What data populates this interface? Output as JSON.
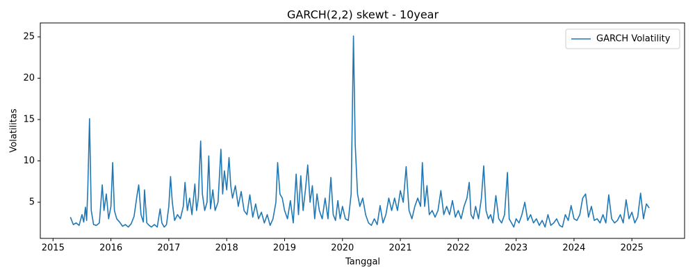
{
  "chart_data": {
    "type": "line",
    "title": "GARCH(2,2) skewt - 10year",
    "x_label": "Tanggal",
    "y_label": "Volatilitas",
    "x": [
      2015.3,
      2015.35,
      2015.4,
      2015.45,
      2015.5,
      2015.53,
      2015.56,
      2015.58,
      2015.6,
      2015.63,
      2015.66,
      2015.7,
      2015.75,
      2015.8,
      2015.85,
      2015.88,
      2015.92,
      2015.96,
      2016.0,
      2016.03,
      2016.06,
      2016.1,
      2016.15,
      2016.2,
      2016.25,
      2016.3,
      2016.35,
      2016.4,
      2016.45,
      2016.48,
      2016.52,
      2016.56,
      2016.58,
      2016.62,
      2016.66,
      2016.7,
      2016.75,
      2016.8,
      2016.85,
      2016.88,
      2016.92,
      2016.96,
      2017.0,
      2017.03,
      2017.06,
      2017.1,
      2017.15,
      2017.2,
      2017.25,
      2017.28,
      2017.32,
      2017.36,
      2017.4,
      2017.45,
      2017.48,
      2017.51,
      2017.55,
      2017.58,
      2017.62,
      2017.66,
      2017.69,
      2017.72,
      2017.76,
      2017.8,
      2017.85,
      2017.9,
      2017.93,
      2017.96,
      2018.0,
      2018.04,
      2018.07,
      2018.1,
      2018.15,
      2018.2,
      2018.25,
      2018.3,
      2018.35,
      2018.4,
      2018.45,
      2018.5,
      2018.55,
      2018.6,
      2018.65,
      2018.7,
      2018.75,
      2018.8,
      2018.85,
      2018.88,
      2018.92,
      2018.96,
      2019.0,
      2019.05,
      2019.1,
      2019.15,
      2019.2,
      2019.24,
      2019.28,
      2019.32,
      2019.36,
      2019.4,
      2019.44,
      2019.48,
      2019.52,
      2019.56,
      2019.6,
      2019.65,
      2019.7,
      2019.75,
      2019.8,
      2019.84,
      2019.88,
      2019.92,
      2019.96,
      2020.0,
      2020.05,
      2020.1,
      2020.15,
      2020.19,
      2020.22,
      2020.26,
      2020.3,
      2020.35,
      2020.4,
      2020.45,
      2020.5,
      2020.55,
      2020.6,
      2020.65,
      2020.7,
      2020.75,
      2020.8,
      2020.85,
      2020.9,
      2020.95,
      2021.0,
      2021.05,
      2021.1,
      2021.15,
      2021.2,
      2021.25,
      2021.3,
      2021.35,
      2021.38,
      2021.42,
      2021.46,
      2021.5,
      2021.55,
      2021.6,
      2021.65,
      2021.7,
      2021.75,
      2021.8,
      2021.85,
      2021.9,
      2021.95,
      2022.0,
      2022.05,
      2022.1,
      2022.15,
      2022.19,
      2022.22,
      2022.26,
      2022.3,
      2022.35,
      2022.4,
      2022.44,
      2022.48,
      2022.52,
      2022.56,
      2022.6,
      2022.65,
      2022.7,
      2022.75,
      2022.8,
      2022.85,
      2022.88,
      2022.92,
      2022.96,
      2023.0,
      2023.05,
      2023.1,
      2023.15,
      2023.2,
      2023.25,
      2023.3,
      2023.35,
      2023.4,
      2023.45,
      2023.5,
      2023.55,
      2023.6,
      2023.65,
      2023.7,
      2023.75,
      2023.8,
      2023.85,
      2023.9,
      2023.95,
      2024.0,
      2024.05,
      2024.1,
      2024.15,
      2024.2,
      2024.25,
      2024.3,
      2024.35,
      2024.4,
      2024.45,
      2024.5,
      2024.55,
      2024.6,
      2024.65,
      2024.7,
      2024.75,
      2024.8,
      2024.85,
      2024.9,
      2024.95,
      2025.0,
      2025.05,
      2025.1,
      2025.15,
      2025.2,
      2025.25,
      2025.3
    ],
    "series": [
      {
        "name": "GARCH Volatility",
        "color": "#1f77b4",
        "values": [
          3.2,
          2.3,
          2.5,
          2.2,
          3.5,
          2.6,
          4.4,
          2.8,
          6.5,
          15.1,
          4.0,
          2.3,
          2.2,
          2.5,
          7.1,
          4.0,
          6.0,
          3.0,
          4.5,
          9.8,
          4.0,
          3.0,
          2.6,
          2.1,
          2.3,
          2.0,
          2.4,
          3.3,
          5.8,
          7.1,
          3.5,
          2.6,
          6.5,
          2.5,
          2.2,
          2.0,
          2.3,
          2.0,
          4.2,
          2.5,
          2.0,
          2.3,
          4.5,
          8.1,
          5.0,
          2.8,
          3.5,
          3.0,
          4.5,
          7.4,
          4.0,
          5.5,
          3.5,
          7.2,
          4.0,
          5.5,
          12.4,
          6.0,
          4.0,
          5.0,
          10.6,
          4.2,
          6.5,
          4.0,
          5.0,
          11.4,
          6.0,
          8.8,
          6.5,
          10.4,
          7.0,
          5.5,
          7.0,
          4.5,
          6.3,
          4.0,
          3.5,
          5.9,
          3.2,
          4.8,
          3.0,
          3.8,
          2.5,
          3.5,
          2.2,
          3.0,
          5.0,
          9.8,
          6.0,
          5.5,
          4.0,
          3.0,
          5.2,
          2.5,
          8.4,
          3.5,
          8.2,
          4.0,
          6.5,
          9.5,
          5.0,
          7.0,
          3.0,
          6.0,
          4.0,
          3.0,
          5.5,
          3.0,
          8.0,
          3.5,
          2.8,
          5.2,
          3.0,
          4.5,
          3.0,
          2.8,
          6.0,
          25.1,
          12.0,
          6.0,
          4.5,
          5.5,
          3.5,
          2.5,
          2.2,
          3.0,
          2.3,
          4.6,
          2.5,
          3.5,
          5.5,
          4.0,
          5.5,
          4.0,
          6.4,
          5.0,
          9.3,
          4.0,
          3.0,
          4.5,
          5.5,
          4.5,
          9.8,
          4.5,
          7.0,
          3.5,
          4.0,
          3.2,
          4.0,
          6.4,
          3.5,
          4.5,
          3.5,
          5.2,
          3.2,
          4.0,
          3.0,
          4.5,
          5.5,
          7.4,
          3.5,
          3.0,
          4.5,
          3.0,
          5.5,
          9.4,
          4.0,
          3.0,
          3.5,
          2.5,
          5.8,
          3.0,
          2.5,
          3.5,
          8.6,
          3.0,
          2.5,
          2.0,
          3.0,
          2.5,
          3.5,
          5.0,
          2.8,
          3.5,
          2.5,
          3.0,
          2.2,
          2.8,
          2.0,
          3.5,
          2.2,
          2.5,
          3.0,
          2.2,
          2.0,
          3.5,
          2.8,
          4.6,
          3.0,
          2.8,
          3.5,
          5.5,
          6.0,
          3.2,
          4.5,
          2.8,
          3.0,
          2.5,
          3.5,
          2.5,
          5.9,
          3.0,
          2.5,
          2.8,
          3.5,
          2.5,
          5.3,
          3.0,
          3.8,
          2.5,
          3.2,
          6.1,
          3.0,
          4.8,
          4.3
        ]
      }
    ],
    "xlim": [
      2014.78,
      2025.91
    ],
    "xticks": [
      2015,
      2016,
      2017,
      2018,
      2019,
      2020,
      2021,
      2022,
      2023,
      2024,
      2025
    ],
    "ylim": [
      0.63,
      26.68
    ],
    "yticks": [
      5,
      10,
      15,
      20,
      25
    ],
    "legend": "upper right"
  }
}
